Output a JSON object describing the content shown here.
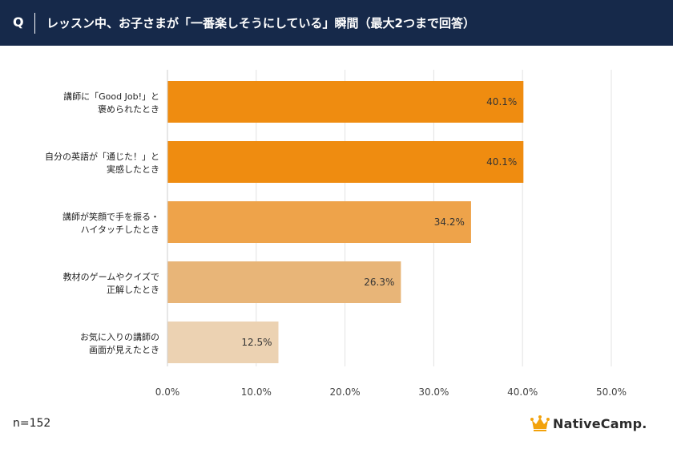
{
  "header": {
    "q_label": "Q",
    "title": "レッスン中、お子さまが「一番楽しそうにしている」瞬間（最大2つまで回答）"
  },
  "chart_data": {
    "type": "bar",
    "orientation": "horizontal",
    "categories": [
      [
        "講師に「Good Job!」と",
        "褒められたとき"
      ],
      [
        "自分の英語が「通じた！」と",
        "実感したとき"
      ],
      [
        "講師が笑顔で手を振る・",
        "ハイタッチしたとき"
      ],
      [
        "教材のゲームやクイズで",
        "正解したとき"
      ],
      [
        "お気に入りの講師の",
        "画面が見えたとき"
      ]
    ],
    "values": [
      40.1,
      40.1,
      34.2,
      26.3,
      12.5
    ],
    "value_labels": [
      "40.1%",
      "40.1%",
      "34.2%",
      "26.3%",
      "12.5%"
    ],
    "bar_colors": [
      "#ef8c10",
      "#ef8c10",
      "#eea34a",
      "#e8b578",
      "#ecd2b2"
    ],
    "xlim": [
      0,
      50
    ],
    "x_ticks": [
      0,
      10,
      20,
      30,
      40,
      50
    ],
    "x_tick_labels": [
      "0.0%",
      "10.0%",
      "20.0%",
      "30.0%",
      "40.0%",
      "50.0%"
    ],
    "grid": true
  },
  "footnote": "n=152",
  "logo": {
    "brand": "NativeCamp."
  },
  "colors": {
    "header_bg": "#16294a",
    "grid": "#e3e3e3",
    "crown": "#f2a20c"
  }
}
